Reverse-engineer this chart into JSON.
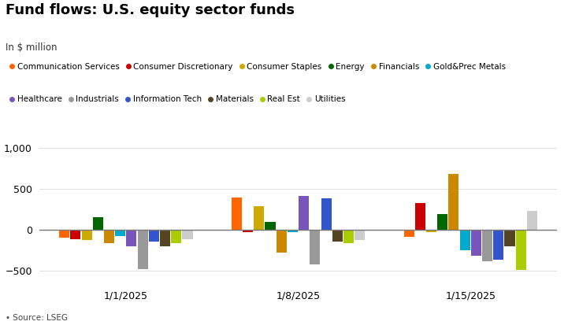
{
  "title": "Fund flows: U.S. equity sector funds",
  "subtitle": "In $ million",
  "source": "• Source: LSEG",
  "categories": [
    "1/1/2025",
    "1/8/2025",
    "1/15/2025"
  ],
  "sectors": [
    "Communication Services",
    "Consumer Discretionary",
    "Consumer Staples",
    "Energy",
    "Financials",
    "Gold&Prec Metals",
    "Healthcare",
    "Industrials",
    "Information Tech",
    "Materials",
    "Real Est",
    "Utilities"
  ],
  "colors": [
    "#FF6600",
    "#CC0000",
    "#CCAA00",
    "#006600",
    "#CC8800",
    "#00AACC",
    "#7755BB",
    "#999999",
    "#3355CC",
    "#554422",
    "#AACC00",
    "#CCCCCC"
  ],
  "values": {
    "1/1/2025": [
      -100,
      -120,
      -130,
      150,
      -170,
      -80,
      -200,
      -480,
      -150,
      -200,
      -170,
      -120
    ],
    "1/8/2025": [
      390,
      -30,
      290,
      90,
      -280,
      -30,
      410,
      -430,
      380,
      -150,
      -170,
      -130
    ],
    "1/15/2025": [
      -90,
      330,
      -30,
      190,
      680,
      -250,
      -320,
      -390,
      -370,
      -200,
      -490,
      230
    ]
  },
  "ylim": [
    -650,
    1100
  ],
  "yticks": [
    -500,
    0,
    500,
    1000
  ],
  "background_color": "#ffffff",
  "grid_color": "#e0e0e0"
}
